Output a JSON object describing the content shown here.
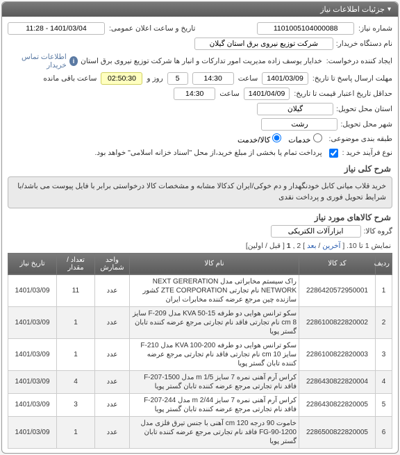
{
  "panels": {
    "main": {
      "title": "جزئیات اطلاعات نیاز",
      "chevron": "▾"
    }
  },
  "header": {
    "niaz_no_label": "شماره نیاز:",
    "niaz_no": "1101005104000088",
    "ann_date_label": "تاریخ و ساعت اعلان عمومی:",
    "ann_date": "1401/03/04 - 11:28",
    "buyer_label": "نام دستگاه خریدار:",
    "buyer": "شرکت توزیع نیروی برق استان گیلان",
    "requester_label": "ایجاد کننده درخواست:",
    "requester": "خدایار یوسف زاده مدیریت امور تدارکات و انبار ها شرکت توزیع نیروی برق استان",
    "contact_link": "اطلاعات تماس خریدار",
    "deadline_label": "مهلت ارسال پاسخ تا تاریخ:",
    "deadline_date": "1401/03/09",
    "deadline_time_lbl": "ساعت",
    "deadline_time": "14:30",
    "remaining1": "5",
    "remaining1_lbl": "روز و",
    "countdown": "02:50:30",
    "countdown_lbl": "ساعت باقی مانده",
    "credit_label": "حداقل تاریخ اعتبار قیمت تا تاریخ:",
    "credit_date": "1401/04/09",
    "credit_time_lbl": "ساعت",
    "credit_time": "14:30",
    "province_label": "استان محل تحویل:",
    "province": "گیلان",
    "city_label": "شهر محل تحویل:",
    "city": "رشت",
    "budget_label": "طبقه بندی موضوعی:",
    "budget_svc": "خدمات",
    "budget_goods": "کالا/خدمت",
    "process_label": "نوع فرآیند خرید :",
    "process_note": "پرداخت تمام یا بخشی از مبلغ خرید،از محل \"اسناد خزانه اسلامی\" خواهد بود."
  },
  "desc": {
    "title": "شرح کلی نیاز",
    "text": "خرید قلاب میانی کابل خودنگهدار و دم خوکی/ایران کدکالا مشابه و مشخصات کالا درخواستی برابر با فایل پیوست می باشد/با شرایط تحویل فوری و پرداخت نقدی"
  },
  "kala": {
    "title": "شرح کالاهای مورد نیاز",
    "group_label": "گروه کالا:",
    "group": "ابزارآلات الکتریکی"
  },
  "pager": {
    "text_pre": "نمایش 1 تا 10. [ ",
    "last": "آخرین",
    "sep1": " / ",
    "next": "بعد",
    "sep2": " ] 2 ,",
    "cur": "1",
    "sep3": " [ قبل / اولین]"
  },
  "table": {
    "headers": {
      "idx": "ردیف",
      "code": "کد کالا",
      "name": "نام کالا",
      "unit": "واحد شمارش",
      "qty": "تعداد / مقدار",
      "date": "تاریخ نیاز"
    },
    "rows": [
      {
        "idx": "1",
        "code": "2286420572950001",
        "name": "راک سیستم مخابراتی مدل NEXT GERERATION NETWORK نام تجارتی ZTE CORPORATION کشور سازنده چین مرجع عرضه کننده مخابرات ایران",
        "unit": "عدد",
        "qty": "11",
        "date": "1401/03/09"
      },
      {
        "idx": "2",
        "code": "2286100822820002",
        "name": "سکو ترانس هوایی دو طرفه KVA 50-15 مدل F-209 سایز 8 cm نام تجارتی فاقد نام تجارتی مرجع عرضه کننده تابان گستر پویا",
        "unit": "عدد",
        "qty": "1",
        "date": "1401/03/09"
      },
      {
        "idx": "3",
        "code": "2286100822820003",
        "name": "سکو ترانس هوایی دو طرفه KVA 100-200 مدل F-210 سایز cm 10 نام تجارتی فاقد نام تجارتی مرجع عرضه کننده تابان گستر پویا",
        "unit": "عدد",
        "qty": "1",
        "date": "1401/03/09"
      },
      {
        "idx": "4",
        "code": "2286430822820004",
        "name": "کراس آرم آهنی نمره 7 سایز m 1/5 مدل F-207-1500 فاقد نام تجارتی مرجع عرضه کننده تابان گستر پویا",
        "unit": "عدد",
        "qty": "4",
        "date": "1401/03/09"
      },
      {
        "idx": "5",
        "code": "2286430822820005",
        "name": "کراس آرم آهنی نمره 7 سایز m 2/44 مدل F-207-244 فاقد نام تجارتی مرجع عرضه کننده تابان گستر پویا",
        "unit": "عدد",
        "qty": "3",
        "date": "1401/03/09"
      },
      {
        "idx": "6",
        "code": "2286500822820005",
        "name": "خاموت 90 درجه cm 120 آهنی با جنس تیرق فلزی مدل FG-90-1200 فاقد نام تجارتی مرجع عرضه کننده تابان گستر پویا",
        "unit": "عدد",
        "qty": "1",
        "date": "1401/03/09"
      }
    ]
  },
  "colors": {
    "header_bg": "#6a6a6a",
    "yellow": "#ffffc0"
  }
}
